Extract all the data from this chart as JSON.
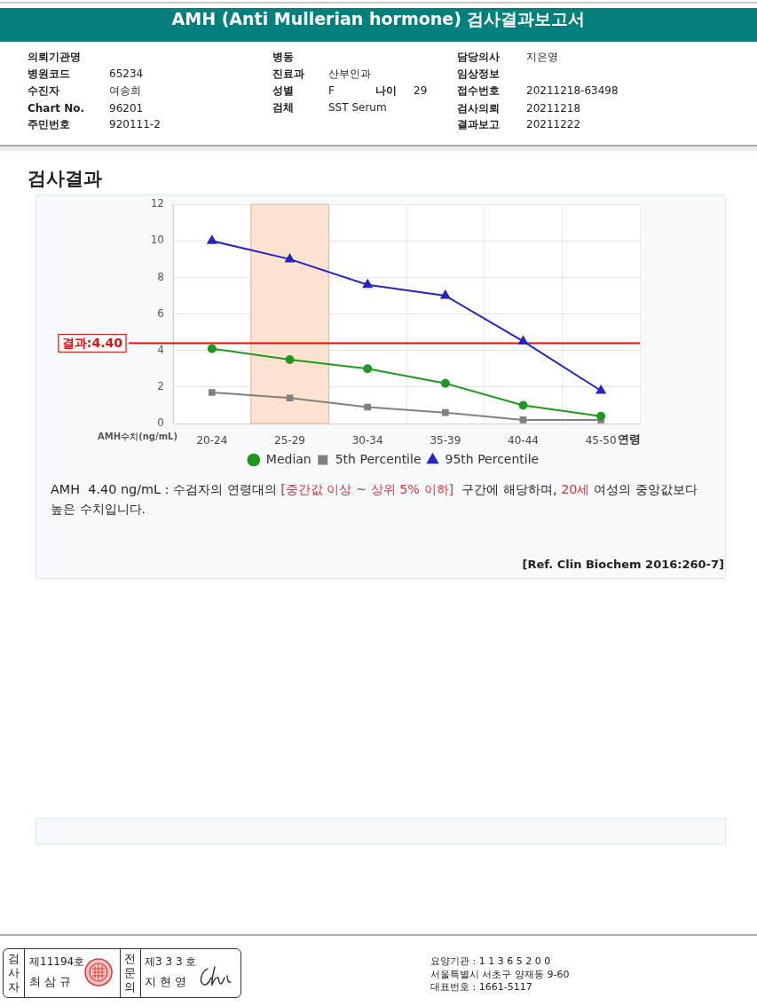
{
  "chart_data": [
    {
      "type": "other",
      "title": "AMH (Anti Mullerian hormone) 검사결과보고서",
      "annotations": [
        "의뢰기관명",
        "병동",
        "담당의사",
        "지은영",
        "병원코드",
        "65234",
        "진료과",
        "산부인과",
        "임상정보",
        "수진자",
        "여송희",
        "성별",
        "F",
        "나이",
        "29",
        "접수번호",
        "20211218-63498",
        "Chart No.",
        "96201",
        "검체",
        "SST Serum",
        "검사의뢰",
        "20211218",
        "주민번호",
        "920111-2",
        "결과보고",
        "20211222"
      ]
    },
    {
      "type": "line",
      "title": "검사결과",
      "xlabel": "연령",
      "ylabel": "AMH수치(ng/mL)",
      "categories": [
        "20-24",
        "25-29",
        "30-34",
        "35-39",
        "40-44",
        "45-50"
      ],
      "series": [
        {
          "name": "Median",
          "color": "#229622",
          "marker": "circle",
          "values": [
            4.1,
            3.5,
            3.0,
            2.2,
            1.0,
            0.4
          ]
        },
        {
          "name": "5th Percentile",
          "color": "#808080",
          "marker": "square",
          "values": [
            1.7,
            1.4,
            0.9,
            0.6,
            0.2,
            0.2
          ]
        },
        {
          "name": "95th Percentile",
          "color": "#2424c0",
          "marker": "triangle",
          "values": [
            10.0,
            9.0,
            7.6,
            7.0,
            4.5,
            1.8
          ]
        }
      ],
      "ylim": [
        0,
        12
      ],
      "yticks": [
        0,
        2,
        4,
        6,
        8,
        10,
        12
      ],
      "grid": true,
      "legend": "bottom",
      "ref_lines": [
        {
          "axis": "y",
          "value": 4.4,
          "label": "결과:4.40",
          "color": "#e01010"
        }
      ],
      "bands": [
        {
          "axis": "x",
          "from": "25-29",
          "to": "25-29",
          "color": "#fde3cf"
        }
      ],
      "annotations": [
        "AMH  4.40 ng/mL : 수검자의 연령대의 ",
        "[중간값 이상 ~ 상위 5% 이하]",
        "  구간에 해당하며, ",
        "20세",
        " 여성의 중앙값보다",
        "높은 수치입니다.",
        "[Ref. Clin Biochem 2016:260-7]"
      ]
    },
    {
      "type": "other",
      "annotations": [
        "검사자",
        "제11194호",
        "최 삼 규",
        "전문의",
        "제3 3 3 호",
        "지 현 영",
        "요양기관 : 1 1 3 6 5 2 0 0",
        "서울특별시 서초구 양재동 9-60",
        "대표번호 : 1661-5117"
      ]
    }
  ]
}
